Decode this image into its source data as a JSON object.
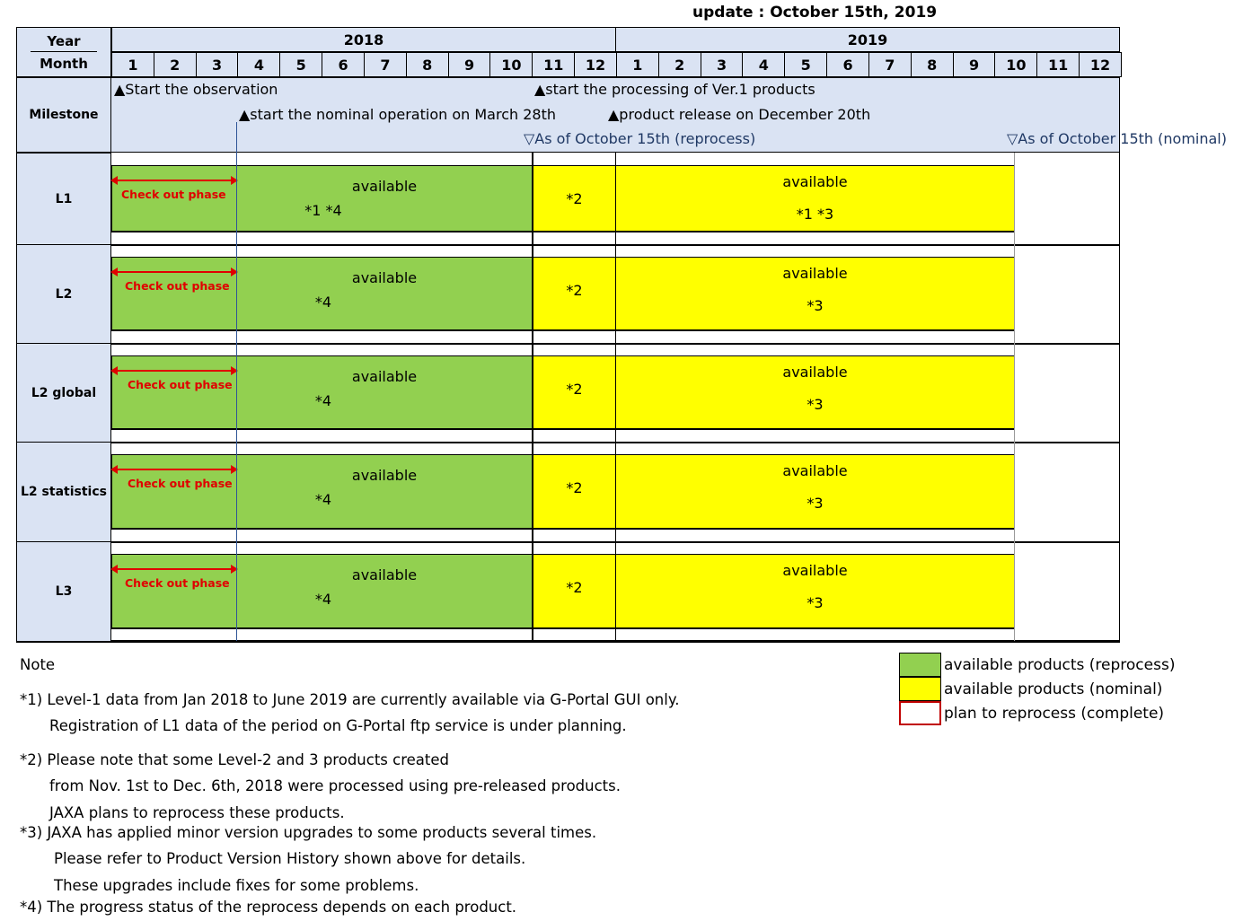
{
  "update": "update : October 15th, 2019",
  "header": {
    "year_label": "Year",
    "month_label": "Month",
    "years": [
      "2018",
      "2019"
    ],
    "months": [
      "1",
      "2",
      "3",
      "4",
      "5",
      "6",
      "7",
      "8",
      "9",
      "10",
      "11",
      "12",
      "1",
      "2",
      "3",
      "4",
      "5",
      "6",
      "7",
      "8",
      "9",
      "10",
      "11",
      "12"
    ]
  },
  "milestone": {
    "label": "Milestone",
    "items": [
      "▲Start the observation",
      "▲start the processing of Ver.1 products",
      "▲start the nominal operation on March 28th",
      "▲product release on December 20th",
      "▽As of October 15th (reprocess)",
      "▽As of October 15th (nominal)"
    ]
  },
  "rows": [
    {
      "label": "L1",
      "phase": "Check out phase",
      "green_title": "available",
      "green_notes": "*1  *4",
      "gap_note": "*2",
      "yellow_title": "available",
      "yellow_notes": "*1  *3"
    },
    {
      "label": "L2",
      "phase": "Check out phase",
      "green_title": "available",
      "green_notes": "*4",
      "gap_note": "*2",
      "yellow_title": "available",
      "yellow_notes": "*3"
    },
    {
      "label": "L2 global",
      "phase": "Check out phase",
      "green_title": "available",
      "green_notes": "*4",
      "gap_note": "*2",
      "yellow_title": "available",
      "yellow_notes": "*3"
    },
    {
      "label": "L2 statistics",
      "phase": "Check out phase",
      "green_title": "available",
      "green_notes": "*4",
      "gap_note": "*2",
      "yellow_title": "available",
      "yellow_notes": "*3"
    },
    {
      "label": "L3",
      "phase": "Check out phase",
      "green_title": "available",
      "green_notes": "*4",
      "gap_note": "*2",
      "yellow_title": "available",
      "yellow_notes": "*3"
    }
  ],
  "notes": {
    "title": "Note",
    "lines": [
      "*1) Level-1 data from Jan 2018 to June 2019 are currently available via G-Portal GUI only.",
      "Registration of L1 data of the period on G-Portal ftp service is under planning.",
      "*2) Please note that some Level-2 and 3 products created",
      "from Nov. 1st to Dec. 6th, 2018 were processed using pre-released products.",
      "JAXA plans to reprocess these products.",
      "*3) JAXA has applied minor version upgrades to some products several times.",
      "Please refer to Product Version History shown above for details.",
      "These upgrades include fixes for some problems.",
      "*4) The progress status of the reprocess depends on each product."
    ]
  },
  "legend": {
    "items": [
      {
        "label": "available products (reprocess)",
        "color": "#92d050"
      },
      {
        "label": "available products (nominal)",
        "color": "#ffff00"
      },
      {
        "label": "plan to reprocess (complete)",
        "color": "#ffffff"
      }
    ]
  },
  "colors": {
    "header_bg": "#dae3f3",
    "reprocess": "#92d050",
    "nominal": "#ffff00",
    "phase_arrow": "#e00000",
    "milestone_blue": "#1f3864"
  }
}
